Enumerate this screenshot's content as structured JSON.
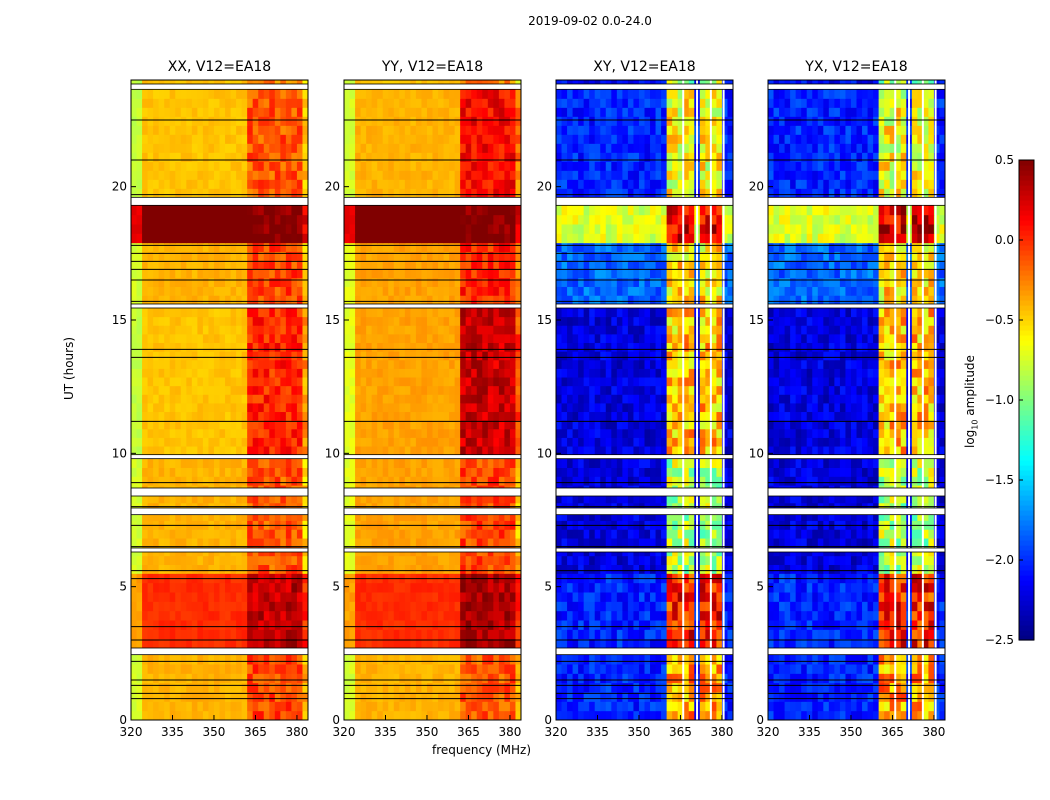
{
  "chart_data": {
    "type": "heatmap",
    "title": "2019-09-02 0.0-24.0",
    "xlabel": "frequency (MHz)",
    "ylabel": "UT (hours)",
    "xlim": [
      320,
      384
    ],
    "ylim": [
      0,
      24
    ],
    "xticks": [
      "320",
      "335",
      "350",
      "365",
      "380"
    ],
    "xtick_values": [
      320,
      335,
      350,
      365,
      380
    ],
    "yticks": [
      "0",
      "5",
      "10",
      "15",
      "20"
    ],
    "ytick_values": [
      0,
      5,
      10,
      15,
      20
    ],
    "colorbar": {
      "label_main": "log",
      "label_sub": "10",
      "label_rest": " amplitude",
      "range": [
        -2.5,
        0.5
      ],
      "ticks": [
        "0.5",
        "0.0",
        "−0.5",
        "−1.0",
        "−1.5",
        "−2.0",
        "−2.5"
      ],
      "tick_values": [
        0.5,
        0,
        -0.5,
        -1,
        -1.5,
        -2,
        -2.5
      ],
      "colormap": "jet"
    },
    "flagged_hours": [
      [
        2.45,
        2.7
      ],
      [
        6.3,
        6.45
      ],
      [
        7.7,
        7.95
      ],
      [
        8.4,
        8.7
      ],
      [
        9.8,
        9.95
      ],
      [
        15.45,
        15.6
      ],
      [
        19.3,
        19.6
      ],
      [
        23.65,
        23.85
      ]
    ],
    "line_hours": [
      0.8,
      1.0,
      1.3,
      1.5,
      2.2,
      3.0,
      3.5,
      5.3,
      5.6,
      6.5,
      7.3,
      8.0,
      8.9,
      11.2,
      13.6,
      13.9,
      15.7,
      16.5,
      16.9,
      17.2,
      17.5,
      17.8,
      19.7,
      21.0,
      22.5
    ],
    "panels": [
      {
        "title": "XX, V12=EA18",
        "kind": "parallel",
        "segments": [
          {
            "t": [
              0,
              2.45
            ],
            "base": -0.45,
            "band": -0.1
          },
          {
            "t": [
              2.7,
              5.5
            ],
            "base": -0.05,
            "band": 0.3
          },
          {
            "t": [
              5.5,
              9.8
            ],
            "base": -0.45,
            "band": -0.15
          },
          {
            "t": [
              9.95,
              15.45
            ],
            "base": -0.5,
            "band": 0.0
          },
          {
            "t": [
              15.6,
              17.9
            ],
            "base": -0.45,
            "band": -0.1
          },
          {
            "t": [
              17.9,
              19.3
            ],
            "base": 0.5,
            "band": 0.5
          },
          {
            "t": [
              19.6,
              23.65
            ],
            "base": -0.5,
            "band": -0.15
          },
          {
            "t": [
              23.85,
              24
            ],
            "base": -0.5,
            "band": -0.3
          }
        ]
      },
      {
        "title": "YY, V12=EA18",
        "kind": "parallel",
        "segments": [
          {
            "t": [
              0,
              2.45
            ],
            "base": -0.45,
            "band": -0.15
          },
          {
            "t": [
              2.7,
              5.5
            ],
            "base": -0.05,
            "band": 0.35
          },
          {
            "t": [
              5.5,
              9.8
            ],
            "base": -0.4,
            "band": -0.1
          },
          {
            "t": [
              9.95,
              15.45
            ],
            "base": -0.4,
            "band": 0.25
          },
          {
            "t": [
              15.6,
              17.9
            ],
            "base": -0.4,
            "band": 0.0
          },
          {
            "t": [
              17.9,
              19.3
            ],
            "base": 0.5,
            "band": 0.5
          },
          {
            "t": [
              19.6,
              23.65
            ],
            "base": -0.45,
            "band": 0.1
          },
          {
            "t": [
              23.85,
              24
            ],
            "base": -0.5,
            "band": -0.3
          }
        ]
      },
      {
        "title": "XY, V12=EA18",
        "kind": "cross",
        "segments": [
          {
            "t": [
              0,
              2.45
            ],
            "base": -2.2,
            "band": -0.3
          },
          {
            "t": [
              2.7,
              5.5
            ],
            "base": -2.2,
            "band": 0.1
          },
          {
            "t": [
              5.5,
              9.8
            ],
            "base": -2.4,
            "band": -0.8
          },
          {
            "t": [
              9.95,
              15.45
            ],
            "base": -2.4,
            "band": -0.4
          },
          {
            "t": [
              15.6,
              17.9
            ],
            "base": -2.0,
            "band": -0.5
          },
          {
            "t": [
              17.9,
              19.3
            ],
            "base": -0.9,
            "band": 0.3
          },
          {
            "t": [
              19.6,
              23.65
            ],
            "base": -2.2,
            "band": -0.6
          },
          {
            "t": [
              23.85,
              24
            ],
            "base": -2.3,
            "band": -0.8
          }
        ]
      },
      {
        "title": "YX, V12=EA18",
        "kind": "cross",
        "segments": [
          {
            "t": [
              0,
              2.45
            ],
            "base": -2.2,
            "band": -0.3
          },
          {
            "t": [
              2.7,
              5.5
            ],
            "base": -2.2,
            "band": 0.1
          },
          {
            "t": [
              5.5,
              9.8
            ],
            "base": -2.4,
            "band": -0.8
          },
          {
            "t": [
              9.95,
              15.45
            ],
            "base": -2.4,
            "band": -0.4
          },
          {
            "t": [
              15.6,
              17.9
            ],
            "base": -2.0,
            "band": -0.5
          },
          {
            "t": [
              17.9,
              19.3
            ],
            "base": -0.9,
            "band": 0.3
          },
          {
            "t": [
              19.6,
              23.65
            ],
            "base": -2.2,
            "band": -0.6
          },
          {
            "t": [
              23.85,
              24
            ],
            "base": -2.3,
            "band": -0.8
          }
        ]
      }
    ],
    "band_columns_mhz": [
      [
        361,
        365.8
      ],
      [
        366.2,
        370.8
      ],
      [
        371.2,
        375.8
      ],
      [
        376.2,
        380.4
      ]
    ]
  }
}
